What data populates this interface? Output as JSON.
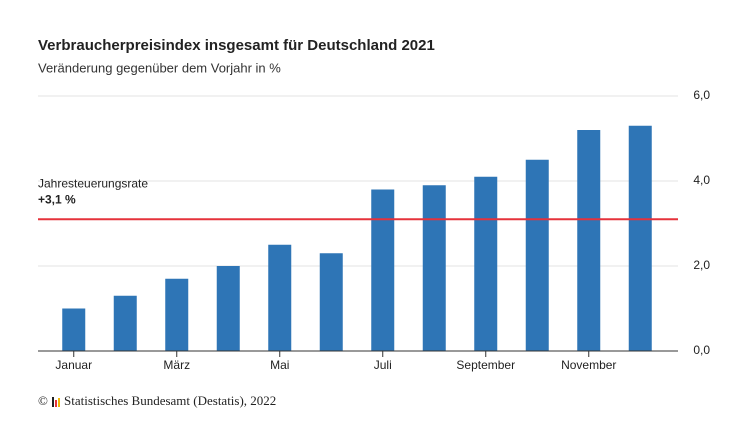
{
  "chart_data": {
    "type": "bar",
    "title": "Verbraucherpreisindex insgesamt für Deutschland 2021",
    "subtitle": "Veränderung gegenüber dem Vorjahr in %",
    "categories": [
      "Januar",
      null,
      "März",
      null,
      "Mai",
      null,
      "Juli",
      null,
      "September",
      null,
      "November",
      null
    ],
    "values": [
      1.0,
      1.3,
      1.7,
      2.0,
      2.5,
      2.3,
      3.8,
      3.9,
      4.1,
      4.5,
      5.2,
      5.3
    ],
    "color": "#2e75b6",
    "ylim": [
      0,
      6
    ],
    "yticks": [
      {
        "value": 0,
        "label": "0,0"
      },
      {
        "value": 2,
        "label": "2,0"
      },
      {
        "value": 4,
        "label": "4,0"
      },
      {
        "value": 6,
        "label": "6,0"
      }
    ],
    "grid": true,
    "reference": {
      "name": "Jahresteuerungsrate",
      "value": 3.1,
      "label": "+3,1 %",
      "color": "#e5323b"
    },
    "copyright": "©",
    "source": "Statistisches Bundesamt (Destatis), 2022"
  }
}
